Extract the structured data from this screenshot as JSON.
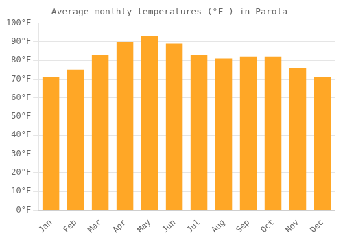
{
  "chart_data": {
    "type": "bar",
    "title": "Average monthly temperatures (°F ) in Pārola",
    "categories": [
      "Jan",
      "Feb",
      "Mar",
      "Apr",
      "May",
      "Jun",
      "Jul",
      "Aug",
      "Sep",
      "Oct",
      "Nov",
      "Dec"
    ],
    "values": [
      71,
      75,
      83,
      90,
      93,
      89,
      83,
      81,
      82,
      82,
      76,
      71
    ],
    "color": "#FFA726",
    "ylim": [
      0,
      100
    ],
    "yticks": [
      {
        "value": 0,
        "label": "0°F"
      },
      {
        "value": 10,
        "label": "10°F"
      },
      {
        "value": 20,
        "label": "20°F"
      },
      {
        "value": 30,
        "label": "30°F"
      },
      {
        "value": 40,
        "label": "40°F"
      },
      {
        "value": 50,
        "label": "50°F"
      },
      {
        "value": 60,
        "label": "60°F"
      },
      {
        "value": 70,
        "label": "70°F"
      },
      {
        "value": 80,
        "label": "80°F"
      },
      {
        "value": 90,
        "label": "90°F"
      },
      {
        "value": 100,
        "label": "100°F"
      }
    ],
    "grid": true
  }
}
